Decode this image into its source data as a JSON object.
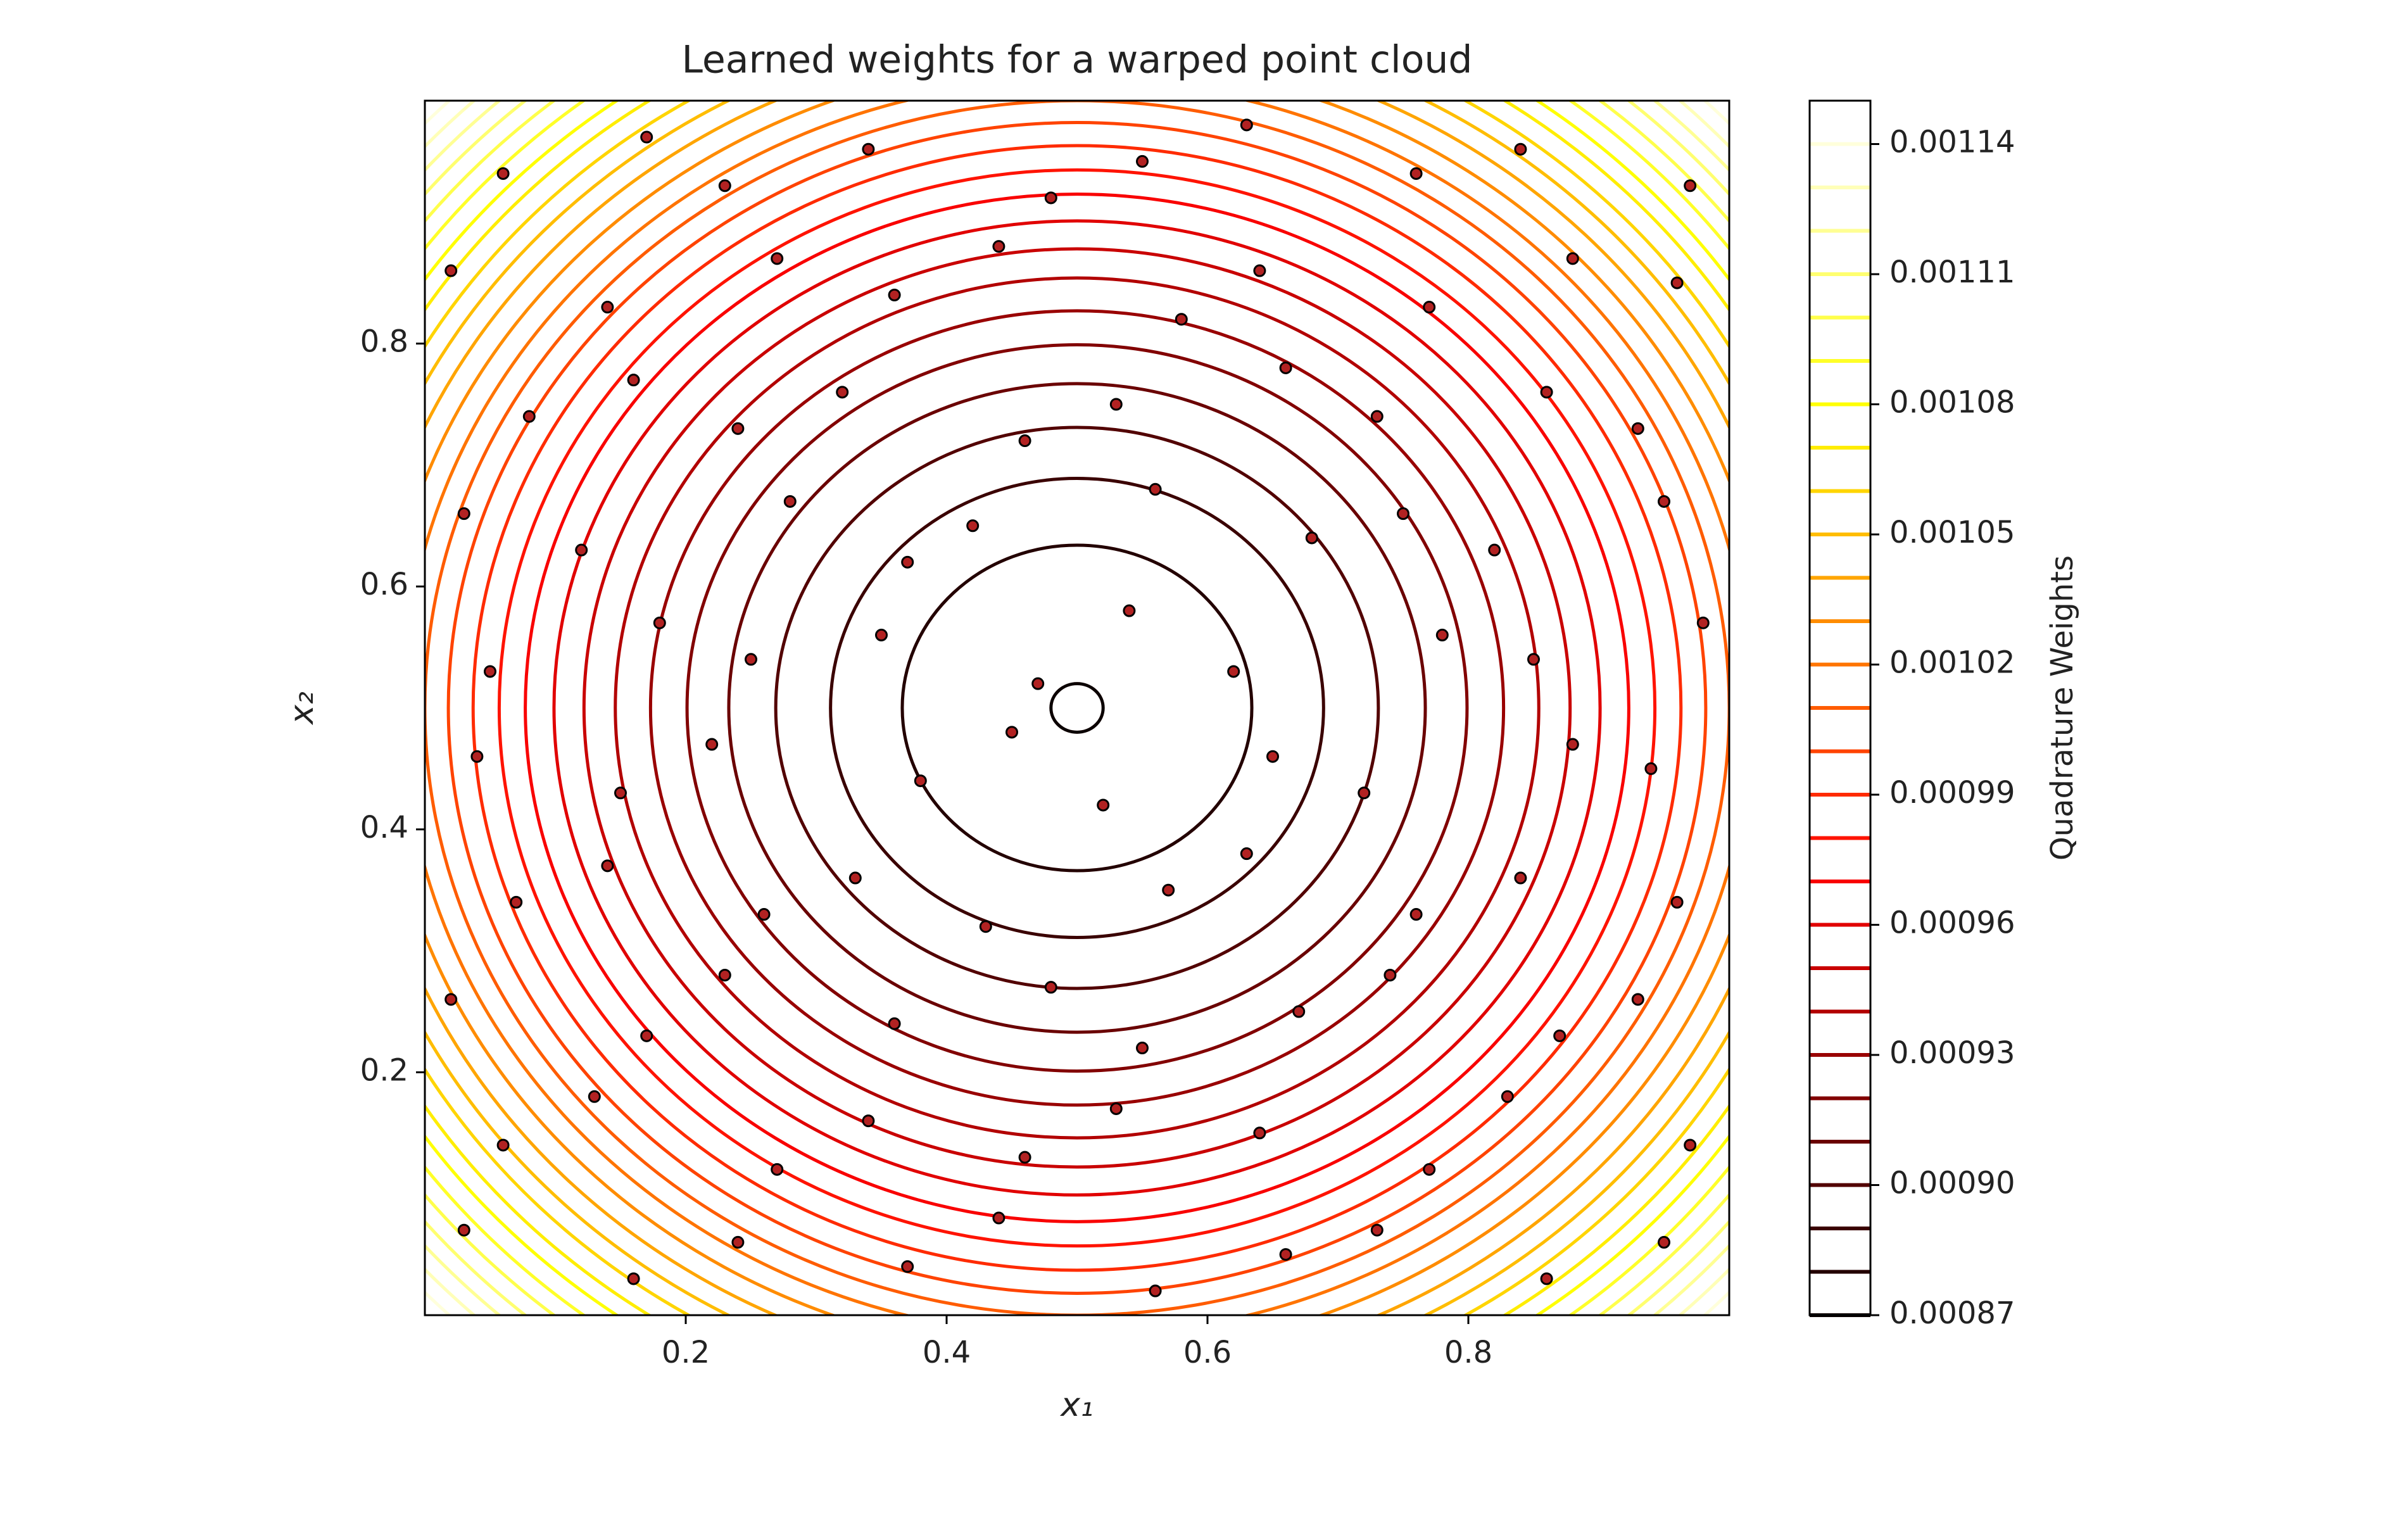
{
  "chart_data": {
    "type": "contour",
    "title": "Learned weights for a warped point cloud",
    "x_label": "x₁",
    "y_label": "x₂",
    "xlim": [
      0,
      1
    ],
    "ylim": [
      0,
      1
    ],
    "xticks": [
      0.2,
      0.4,
      0.6,
      0.8
    ],
    "yticks": [
      0.2,
      0.4,
      0.6,
      0.8
    ],
    "contours": [
      {
        "level": 0.00087,
        "radius": 0.02,
        "color": "#0b0000"
      },
      {
        "level": 0.00088,
        "radius": 0.134,
        "color": "#230000"
      },
      {
        "level": 0.00089,
        "radius": 0.189,
        "color": "#3a0000"
      },
      {
        "level": 0.0009,
        "radius": 0.231,
        "color": "#520000"
      },
      {
        "level": 0.00091,
        "radius": 0.267,
        "color": "#6a0000"
      },
      {
        "level": 0.00092,
        "radius": 0.299,
        "color": "#820000"
      },
      {
        "level": 0.00093,
        "radius": 0.327,
        "color": "#990000"
      },
      {
        "level": 0.00094,
        "radius": 0.354,
        "color": "#b20000"
      },
      {
        "level": 0.00095,
        "radius": 0.378,
        "color": "#c90000"
      },
      {
        "level": 0.00096,
        "radius": 0.401,
        "color": "#e10000"
      },
      {
        "level": 0.00097,
        "radius": 0.423,
        "color": "#f90000"
      },
      {
        "level": 0.00098,
        "radius": 0.443,
        "color": "#ff1300"
      },
      {
        "level": 0.00099,
        "radius": 0.463,
        "color": "#ff2b00"
      },
      {
        "level": 0.001,
        "radius": 0.482,
        "color": "#ff4300"
      },
      {
        "level": 0.00101,
        "radius": 0.5,
        "color": "#ff5c00"
      },
      {
        "level": 0.00102,
        "radius": 0.517,
        "color": "#ff7400"
      },
      {
        "level": 0.00103,
        "radius": 0.534,
        "color": "#ff8c00"
      },
      {
        "level": 0.00104,
        "radius": 0.551,
        "color": "#ffa500"
      },
      {
        "level": 0.00105,
        "radius": 0.567,
        "color": "#ffbd00"
      },
      {
        "level": 0.00106,
        "radius": 0.582,
        "color": "#ffd500"
      },
      {
        "level": 0.00107,
        "radius": 0.598,
        "color": "#ffed00"
      },
      {
        "level": 0.00108,
        "radius": 0.612,
        "color": "#ffff04"
      },
      {
        "level": 0.00109,
        "radius": 0.627,
        "color": "#ffff28"
      },
      {
        "level": 0.0011,
        "radius": 0.641,
        "color": "#ffff4b"
      },
      {
        "level": 0.00111,
        "radius": 0.655,
        "color": "#ffff6f"
      },
      {
        "level": 0.00112,
        "radius": 0.668,
        "color": "#ffff94"
      },
      {
        "level": 0.00113,
        "radius": 0.681,
        "color": "#ffffb8"
      },
      {
        "level": 0.00114,
        "radius": 0.694,
        "color": "#ffffdb"
      },
      {
        "level": 0.00115,
        "radius": 0.707,
        "color": "#ffffff"
      }
    ],
    "points": {
      "color": "#b22222",
      "x": [
        0.03,
        0.16,
        0.24,
        0.37,
        0.44,
        0.56,
        0.66,
        0.73,
        0.86,
        0.95,
        0.06,
        0.13,
        0.27,
        0.34,
        0.46,
        0.53,
        0.64,
        0.77,
        0.83,
        0.97,
        0.02,
        0.17,
        0.23,
        0.36,
        0.48,
        0.55,
        0.67,
        0.74,
        0.87,
        0.93,
        0.07,
        0.14,
        0.26,
        0.33,
        0.43,
        0.57,
        0.63,
        0.76,
        0.84,
        0.96,
        0.04,
        0.15,
        0.22,
        0.38,
        0.45,
        0.52,
        0.65,
        0.72,
        0.88,
        0.94,
        0.05,
        0.18,
        0.25,
        0.35,
        0.47,
        0.54,
        0.62,
        0.78,
        0.85,
        0.98,
        0.03,
        0.12,
        0.28,
        0.37,
        0.42,
        0.56,
        0.68,
        0.75,
        0.82,
        0.95,
        0.08,
        0.16,
        0.24,
        0.32,
        0.46,
        0.53,
        0.66,
        0.73,
        0.86,
        0.93,
        0.02,
        0.14,
        0.27,
        0.36,
        0.44,
        0.58,
        0.64,
        0.77,
        0.88,
        0.96,
        0.06,
        0.17,
        0.23,
        0.34,
        0.48,
        0.55,
        0.63,
        0.76,
        0.84,
        0.97
      ],
      "y": [
        0.07,
        0.03,
        0.06,
        0.04,
        0.08,
        0.02,
        0.05,
        0.07,
        0.03,
        0.06,
        0.14,
        0.18,
        0.12,
        0.16,
        0.13,
        0.17,
        0.15,
        0.12,
        0.18,
        0.14,
        0.26,
        0.23,
        0.28,
        0.24,
        0.27,
        0.22,
        0.25,
        0.28,
        0.23,
        0.26,
        0.34,
        0.37,
        0.33,
        0.36,
        0.32,
        0.35,
        0.38,
        0.33,
        0.36,
        0.34,
        0.46,
        0.43,
        0.47,
        0.44,
        0.48,
        0.42,
        0.46,
        0.43,
        0.47,
        0.45,
        0.53,
        0.57,
        0.54,
        0.56,
        0.52,
        0.58,
        0.53,
        0.56,
        0.54,
        0.57,
        0.66,
        0.63,
        0.67,
        0.62,
        0.65,
        0.68,
        0.64,
        0.66,
        0.63,
        0.67,
        0.74,
        0.77,
        0.73,
        0.76,
        0.72,
        0.75,
        0.78,
        0.74,
        0.76,
        0.73,
        0.86,
        0.83,
        0.87,
        0.84,
        0.88,
        0.82,
        0.86,
        0.83,
        0.87,
        0.85,
        0.94,
        0.97,
        0.93,
        0.96,
        0.92,
        0.95,
        0.98,
        0.94,
        0.96,
        0.93
      ]
    },
    "colorbar": {
      "label": "Quadrature Weights",
      "lim": [
        0.00087,
        0.00115
      ],
      "ticks": [
        0.00087,
        {
          "value": 0.0009,
          "label": "0.00090"
        },
        0.00093,
        0.00096,
        0.00099,
        0.00102,
        0.00105,
        0.00108,
        0.00111,
        0.00114
      ]
    }
  }
}
